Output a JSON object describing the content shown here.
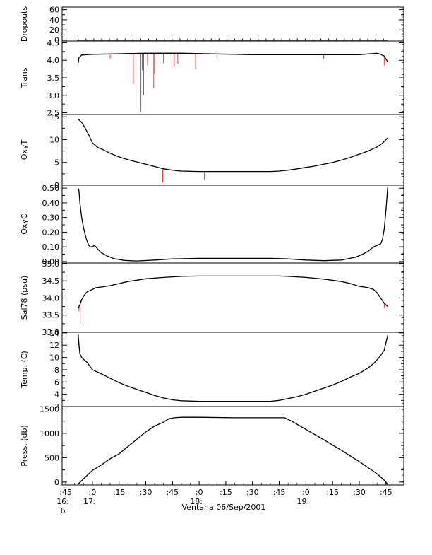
{
  "chart_data": {
    "type": "line",
    "xlabel": "Ventana 06/Sep/2001",
    "x_ticks": [
      {
        "t": -15,
        "label": ":45",
        "sub1": "16:",
        "sub2": "6"
      },
      {
        "t": 0,
        "label": ":0",
        "sub1": "17:",
        "sub2": ""
      },
      {
        "t": 15,
        "label": ":15",
        "sub1": "",
        "sub2": ""
      },
      {
        "t": 30,
        "label": ":30",
        "sub1": "",
        "sub2": ""
      },
      {
        "t": 45,
        "label": ":45",
        "sub1": "",
        "sub2": ""
      },
      {
        "t": 60,
        "label": ":0",
        "sub1": "18:",
        "sub2": ""
      },
      {
        "t": 75,
        "label": ":15",
        "sub1": "",
        "sub2": ""
      },
      {
        "t": 90,
        "label": ":30",
        "sub1": "",
        "sub2": ""
      },
      {
        "t": 105,
        "label": ":45",
        "sub1": "",
        "sub2": ""
      },
      {
        "t": 120,
        "label": ":0",
        "sub1": "19:",
        "sub2": ""
      },
      {
        "t": 135,
        "label": ":15",
        "sub1": "",
        "sub2": ""
      },
      {
        "t": 150,
        "label": ":30",
        "sub1": "",
        "sub2": ""
      },
      {
        "t": 165,
        "label": ":45",
        "sub1": "",
        "sub2": ""
      }
    ],
    "xlim": [
      -17,
      175
    ],
    "series_colors": {
      "main": "#000000",
      "raw": "#ff0000"
    },
    "panels": [
      {
        "name": "Dropouts",
        "ylabel": "Dropouts",
        "ylim": [
          -2,
          65
        ],
        "ticks": [
          0,
          20,
          40,
          60
        ],
        "tick_labels": [
          "0",
          "20",
          "40",
          "60"
        ],
        "minor_ticks": [
          10,
          30,
          50
        ],
        "x": [
          -8,
          166
        ],
        "y": [
          0,
          0
        ],
        "markers": true,
        "spikes": []
      },
      {
        "name": "Trans",
        "ylabel": "Trans",
        "ylim": [
          2.45,
          4.55
        ],
        "ticks": [
          2.5,
          3.0,
          3.5,
          4.0,
          4.5
        ],
        "tick_labels": [
          "2.5",
          "3.0",
          "3.5",
          "4.0",
          "4.5"
        ],
        "minor_ticks": [
          2.75,
          3.25,
          3.75,
          4.25
        ],
        "x": [
          -8,
          -7.5,
          -6,
          0,
          10,
          20,
          30,
          40,
          50,
          60,
          70,
          80,
          90,
          100,
          110,
          120,
          130,
          140,
          150,
          155,
          160,
          162,
          164,
          166
        ],
        "y": [
          3.92,
          4.08,
          4.15,
          4.17,
          4.18,
          4.19,
          4.2,
          4.2,
          4.2,
          4.19,
          4.18,
          4.17,
          4.16,
          4.16,
          4.16,
          4.16,
          4.16,
          4.16,
          4.16,
          4.18,
          4.2,
          4.17,
          4.12,
          3.95
        ],
        "spikes": [
          {
            "x": 23,
            "to": 3.32
          },
          {
            "x": 27.3,
            "to": 2.52
          },
          {
            "x": 28,
            "to": 3.72
          },
          {
            "x": 28.8,
            "to": 3.0
          },
          {
            "x": 31,
            "to": 3.85
          },
          {
            "x": 35,
            "to": 3.62
          },
          {
            "x": 34.5,
            "to": 3.2
          },
          {
            "x": 40,
            "to": 3.92
          },
          {
            "x": 46,
            "to": 3.82
          },
          {
            "x": 48,
            "to": 3.9
          },
          {
            "x": 58,
            "to": 3.75
          },
          {
            "x": 10,
            "to": 4.05
          },
          {
            "x": 70,
            "to": 4.05
          },
          {
            "x": 130,
            "to": 4.05
          },
          {
            "x": 164,
            "to": 3.85
          }
        ]
      },
      {
        "name": "OxyT",
        "ylabel": "OxyT",
        "ylim": [
          0,
          15.5
        ],
        "ticks": [
          0,
          5,
          10,
          15
        ],
        "tick_labels": [
          "0",
          "5",
          "10",
          "15"
        ],
        "minor_ticks": [
          2.5,
          7.5,
          12.5
        ],
        "x": [
          -8,
          -6,
          -4,
          -2,
          0,
          3,
          6,
          10,
          15,
          20,
          25,
          30,
          35,
          40,
          45,
          50,
          60,
          70,
          80,
          90,
          100,
          105,
          110,
          115,
          120,
          125,
          130,
          135,
          140,
          145,
          150,
          155,
          160,
          163,
          166
        ],
        "y": [
          14.5,
          13.8,
          12.5,
          11.0,
          9.3,
          8.3,
          7.8,
          7.0,
          6.2,
          5.6,
          5.1,
          4.6,
          4.1,
          3.6,
          3.3,
          3.1,
          3.0,
          3.0,
          3.0,
          3.0,
          3.0,
          3.1,
          3.3,
          3.6,
          3.9,
          4.2,
          4.6,
          5.0,
          5.5,
          6.1,
          6.8,
          7.5,
          8.4,
          9.2,
          10.4
        ],
        "spikes": [
          {
            "x": 39.5,
            "to": 0.6
          },
          {
            "x": 63,
            "to": 1.2
          }
        ]
      },
      {
        "name": "OxyC",
        "ylabel": "OxyC",
        "ylim": [
          -0.01,
          0.52
        ],
        "ticks": [
          0.0,
          0.1,
          0.2,
          0.3,
          0.4,
          0.5
        ],
        "tick_labels": [
          "0.00",
          "0.10",
          "0.20",
          "0.30",
          "0.40",
          "0.50"
        ],
        "minor_ticks": [
          0.05,
          0.15,
          0.25,
          0.35,
          0.45
        ],
        "x": [
          -8,
          -7.5,
          -7,
          -6,
          -5,
          -4,
          -3,
          -2,
          -1,
          0,
          1,
          2,
          3,
          5,
          8,
          12,
          18,
          25,
          35,
          45,
          60,
          80,
          100,
          110,
          120,
          130,
          140,
          148,
          152,
          155,
          157,
          158,
          160,
          162,
          163,
          164,
          165,
          166
        ],
        "y": [
          0.5,
          0.48,
          0.4,
          0.3,
          0.23,
          0.18,
          0.14,
          0.11,
          0.1,
          0.1,
          0.11,
          0.1,
          0.085,
          0.06,
          0.04,
          0.02,
          0.008,
          0.004,
          0.01,
          0.018,
          0.022,
          0.022,
          0.022,
          0.018,
          0.01,
          0.006,
          0.01,
          0.03,
          0.05,
          0.07,
          0.09,
          0.1,
          0.11,
          0.12,
          0.15,
          0.22,
          0.35,
          0.51
        ],
        "spikes": []
      },
      {
        "name": "Sal78",
        "ylabel": "Sal78 (psu)",
        "ylim": [
          33.0,
          35.02
        ],
        "ticks": [
          33.0,
          33.5,
          34.0,
          34.5,
          35.0
        ],
        "tick_labels": [
          "33.0",
          "33.5",
          "34.0",
          "34.5",
          "35.0"
        ],
        "minor_ticks": [
          33.25,
          33.75,
          34.25,
          34.75
        ],
        "x": [
          -8,
          -7,
          -6,
          -5,
          -4,
          -3,
          -2,
          0,
          2,
          5,
          10,
          15,
          20,
          25,
          30,
          40,
          50,
          60,
          70,
          80,
          90,
          100,
          105,
          110,
          120,
          130,
          140,
          145,
          150,
          155,
          158,
          160,
          162,
          164,
          166
        ],
        "y": [
          33.7,
          33.8,
          33.95,
          34.05,
          34.12,
          34.18,
          34.2,
          34.25,
          34.3,
          34.32,
          34.36,
          34.42,
          34.48,
          34.52,
          34.56,
          34.6,
          34.63,
          34.64,
          34.64,
          34.64,
          34.64,
          34.64,
          34.64,
          34.63,
          34.6,
          34.55,
          34.48,
          34.42,
          34.34,
          34.3,
          34.25,
          34.15,
          34.0,
          33.85,
          33.75
        ],
        "spikes": [
          {
            "x": -7.5,
            "to": 33.6
          },
          {
            "x": -6.8,
            "to": 33.25
          },
          {
            "x": -5.5,
            "to": 34.05
          },
          {
            "x": 164,
            "to": 33.7
          }
        ]
      },
      {
        "name": "Temp",
        "ylabel": "Temp. (C)",
        "ylim": [
          2,
          14.1
        ],
        "ticks": [
          2,
          4,
          6,
          8,
          10,
          12,
          14
        ],
        "tick_labels": [
          "2",
          "4",
          "6",
          "8",
          "10",
          "12",
          "14"
        ],
        "minor_ticks": [
          3,
          5,
          7,
          9,
          11,
          13
        ],
        "x": [
          -8,
          -7.5,
          -7,
          -6,
          -5,
          -3,
          0,
          3,
          6,
          10,
          15,
          20,
          25,
          30,
          35,
          40,
          45,
          50,
          60,
          70,
          80,
          90,
          100,
          105,
          110,
          115,
          120,
          125,
          130,
          135,
          140,
          145,
          150,
          155,
          158,
          160,
          162,
          164,
          166
        ],
        "y": [
          13.8,
          12.0,
          10.6,
          10.0,
          9.7,
          9.2,
          8.0,
          7.6,
          7.2,
          6.6,
          5.9,
          5.3,
          4.8,
          4.3,
          3.8,
          3.4,
          3.1,
          2.95,
          2.85,
          2.85,
          2.85,
          2.85,
          2.85,
          3.0,
          3.3,
          3.6,
          4.0,
          4.5,
          5.0,
          5.5,
          6.1,
          6.8,
          7.4,
          8.3,
          9.0,
          9.6,
          10.3,
          11.2,
          13.6
        ],
        "spikes": []
      },
      {
        "name": "Press",
        "ylabel": "Press. (db)",
        "ylim": [
          -60,
          1550
        ],
        "ticks": [
          0,
          500,
          1000,
          1500
        ],
        "tick_labels": [
          "0",
          "500",
          "1000",
          "1500"
        ],
        "minor_ticks": [
          250,
          750,
          1250
        ],
        "x": [
          -8,
          0,
          5,
          10,
          15,
          20,
          25,
          30,
          35,
          40,
          43,
          46,
          50,
          60,
          80,
          100,
          108,
          112,
          120,
          130,
          140,
          150,
          160,
          164,
          166
        ],
        "y": [
          -40,
          240,
          350,
          480,
          580,
          730,
          880,
          1030,
          1150,
          1230,
          1300,
          1320,
          1330,
          1330,
          1320,
          1320,
          1320,
          1250,
          1080,
          870,
          650,
          420,
          170,
          40,
          -50
        ],
        "spikes": []
      }
    ]
  }
}
